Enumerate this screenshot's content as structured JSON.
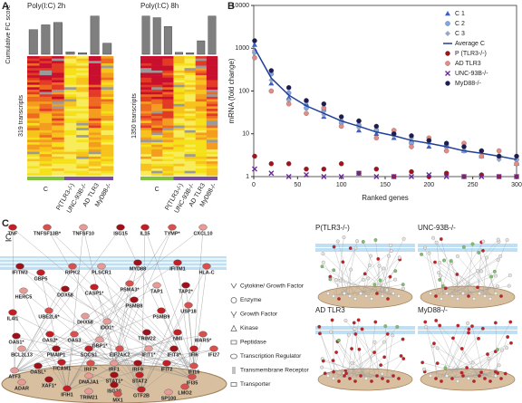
{
  "panel_labels": [
    "A",
    "B",
    "C"
  ],
  "chart_data": [
    {
      "type": "bar",
      "title": "Poly(I:C) 2h",
      "y_label": "Cumulative FC score",
      "heatmap_label": "319 transcripts",
      "categories": [
        null,
        "C",
        null,
        "P(TLR3-/-)",
        "UNC-93B-/-",
        "AD TLR3",
        "MyD88-/-"
      ],
      "values": [
        62,
        74,
        80,
        6,
        4,
        96,
        28
      ],
      "color": "#7f7f7f",
      "ylim": [
        0,
        100
      ]
    },
    {
      "type": "bar",
      "title": "Poly(I:C) 8h",
      "heatmap_label": "1350 transcripts",
      "categories": [
        null,
        "C",
        null,
        "P(TLR3-/-)",
        "UNC-93B-/-",
        "AD TLR3",
        "MyD88-/-"
      ],
      "values": [
        96,
        92,
        70,
        5,
        4,
        34,
        96
      ],
      "color": "#7f7f7f",
      "ylim": [
        0,
        100
      ]
    },
    {
      "type": "scatter",
      "x_label": "Ranked genes",
      "y_label": "mRNA (fold change)",
      "log_y": true,
      "xlim": [
        0,
        300
      ],
      "xticks": [
        0,
        50,
        100,
        150,
        200,
        250,
        300
      ],
      "ylim": [
        1,
        10000
      ],
      "yticks": [
        1,
        10,
        100,
        1000,
        10000
      ],
      "legend": "upper right",
      "x": [
        1,
        20,
        40,
        60,
        80,
        100,
        120,
        140,
        160,
        180,
        200,
        220,
        240,
        260,
        280,
        300
      ],
      "series": [
        {
          "name": "C 1",
          "color": "#3b5fc9",
          "marker": "triangle",
          "values": [
            1200,
            150,
            70,
            50,
            25,
            22,
            12,
            10,
            8,
            7,
            5,
            6,
            4,
            3,
            3,
            2
          ]
        },
        {
          "name": "C 2",
          "color": "#7fa6e0",
          "marker": "circle",
          "values": [
            800,
            250,
            90,
            40,
            35,
            18,
            16,
            12,
            10,
            6,
            7,
            5,
            4,
            4,
            3,
            2.5
          ]
        },
        {
          "name": "C 3",
          "color": "#9aa8c0",
          "marker": "diamond",
          "values": [
            900,
            180,
            60,
            55,
            28,
            20,
            14,
            13,
            9,
            8,
            6,
            4,
            5,
            3,
            2.5,
            2
          ]
        },
        {
          "name": "Average C",
          "color": "#1f3f99",
          "marker": "line",
          "values": [
            1000,
            200,
            80,
            45,
            30,
            20,
            15,
            11,
            9,
            7,
            6,
            5,
            4,
            3.5,
            3,
            2.5
          ]
        },
        {
          "name": "P (TLR3-/-)",
          "color": "#a3121a",
          "marker": "circle",
          "values": [
            3,
            2,
            2,
            1.5,
            1.5,
            2,
            1.2,
            1.5,
            1,
            1.3,
            1,
            1.2,
            1,
            1.1,
            1,
            1
          ]
        },
        {
          "name": "AD TLR3",
          "color": "#e58a86",
          "marker": "circle",
          "values": [
            600,
            100,
            50,
            30,
            40,
            15,
            20,
            8,
            12,
            5,
            8,
            4,
            6,
            3,
            4,
            2
          ]
        },
        {
          "name": "UNC-93B-/-",
          "color": "#6b2a9c",
          "marker": "x",
          "values": [
            1.5,
            1.2,
            1,
            1.1,
            1,
            1,
            1.2,
            1,
            1,
            1,
            1.1,
            1,
            1,
            1,
            1,
            1
          ]
        },
        {
          "name": "MyD88-/-",
          "color": "#1b1b55",
          "marker": "circle",
          "values": [
            1500,
            300,
            120,
            60,
            50,
            25,
            20,
            15,
            10,
            9,
            7,
            6,
            5,
            4,
            3,
            3
          ]
        }
      ]
    }
  ],
  "diagram": {
    "title": "C",
    "nodes": [
      "TNF",
      "TNFSF13B*",
      "TNFSF10",
      "ISG15",
      "IL15",
      "TYMP*",
      "CXCL10",
      "IFITM3",
      "GBP5",
      "RIPK2",
      "PLSCR1",
      "MYD88",
      "IFITM1",
      "HLA-C",
      "HERC5",
      "DDX58",
      "CASP1*",
      "PSMA3*",
      "TAP1",
      "TAP2*",
      "IL4I1",
      "UBE2L6*",
      "DHX58",
      "PSMB8",
      "PSMB9",
      "USP18",
      "IDO1*",
      "OAS1*",
      "OAS2*",
      "OAS3",
      "GBP1*",
      "TRIM22",
      "NMI",
      "WARS*",
      "BCL2L13",
      "PMAIP1",
      "SOCS1",
      "EIF2AK2",
      "IFIT1*",
      "IFIT3*",
      "IFI6",
      "IFI27",
      "ATF3",
      "OASL*",
      "TICAM1",
      "IRF7*",
      "IRF1",
      "IRF9",
      "IFIT2",
      "IFI16",
      "DNAJA1",
      "STAT1*",
      "STAT2",
      "IFI35",
      "ADAR",
      "XAF1*",
      "IFIH1",
      "LMO2",
      "TRIM21",
      "ISG20",
      "GTF2B",
      "MX1",
      "SP100"
    ],
    "legend": [
      "Cytokine/ Growth Factor",
      "Enzyme",
      "Growth Factor",
      "Kinase",
      "Peptidase",
      "Transcription Regulator",
      "Transmembrane Receptor",
      "Transporter"
    ],
    "variants": [
      "P(TLR3-/-)",
      "UNC-93B-/-",
      "AD TLR3",
      "MyD88-/-"
    ]
  }
}
